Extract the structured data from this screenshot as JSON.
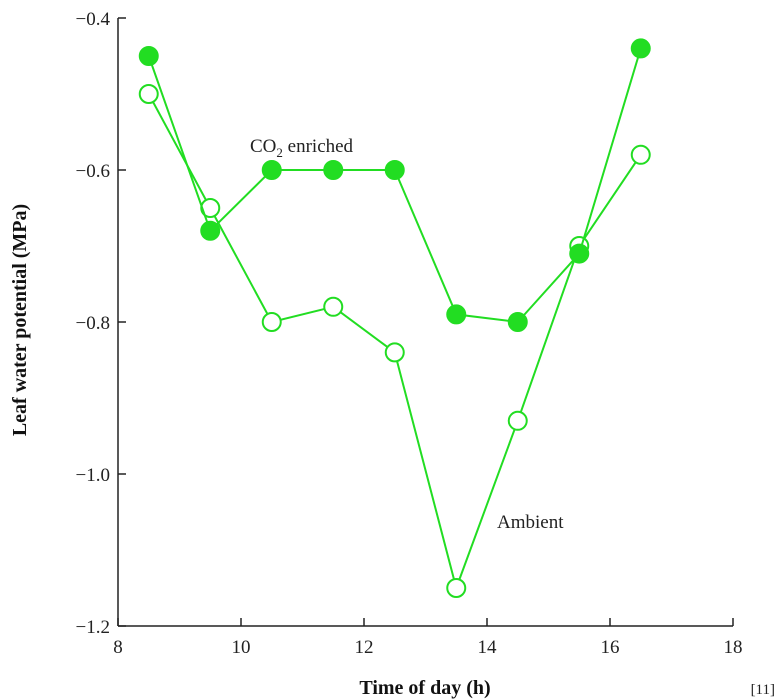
{
  "chart_data": {
    "type": "line",
    "xlabel": "Time of day (h)",
    "ylabel": "Leaf water potential (MPa)",
    "xlim": [
      8,
      18
    ],
    "ylim": [
      -1.2,
      -0.4
    ],
    "xticks": [
      8,
      10,
      12,
      14,
      16,
      18
    ],
    "xtick_labels": [
      "8",
      "10",
      "12",
      "14",
      "16",
      "18"
    ],
    "yticks": [
      -1.2,
      -1.0,
      -0.8,
      -0.6,
      -0.4
    ],
    "ytick_labels": [
      "−1.2",
      "−1.0",
      "−0.8",
      "−0.6",
      "−0.4"
    ],
    "grid": false,
    "series": [
      {
        "name": "CO2 enriched",
        "marker": "filled-circle",
        "color": "#22dd22",
        "x": [
          8.5,
          9.5,
          10.5,
          11.5,
          12.5,
          13.5,
          14.5,
          15.5,
          16.5
        ],
        "y": [
          -0.45,
          -0.68,
          -0.6,
          -0.6,
          -0.6,
          -0.79,
          -0.8,
          -0.71,
          -0.44
        ]
      },
      {
        "name": "Ambient",
        "marker": "open-circle",
        "color": "#22dd22",
        "x": [
          8.5,
          9.5,
          10.5,
          11.5,
          12.5,
          13.5,
          14.5,
          15.5,
          16.5
        ],
        "y": [
          -0.5,
          -0.65,
          -0.8,
          -0.78,
          -0.84,
          -1.15,
          -0.93,
          -0.7,
          -0.58
        ]
      }
    ],
    "annotations": {
      "co2_label_main": "CO",
      "co2_label_sub": "2",
      "co2_label_rest": " enriched",
      "ambient_label": "Ambient"
    },
    "citation": "[11]"
  }
}
